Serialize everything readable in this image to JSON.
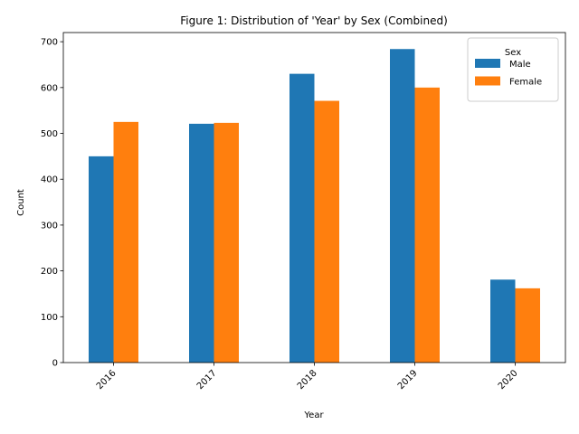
{
  "chart_data": {
    "type": "bar",
    "title": "Figure 1: Distribution of 'Year' by Sex (Combined)",
    "xlabel": "Year",
    "ylabel": "Count",
    "categories": [
      "2016",
      "2017",
      "2018",
      "2019",
      "2020"
    ],
    "series": [
      {
        "name": "Male",
        "values": [
          450,
          521,
          630,
          684,
          181
        ],
        "color": "#1f77b4"
      },
      {
        "name": "Female",
        "values": [
          525,
          523,
          571,
          600,
          162
        ],
        "color": "#ff7f0e"
      }
    ],
    "ylim": [
      0,
      720
    ],
    "yticks": [
      0,
      100,
      200,
      300,
      400,
      500,
      600,
      700
    ],
    "legend": {
      "title": "Sex",
      "placement": "top-right"
    },
    "grid": false
  }
}
